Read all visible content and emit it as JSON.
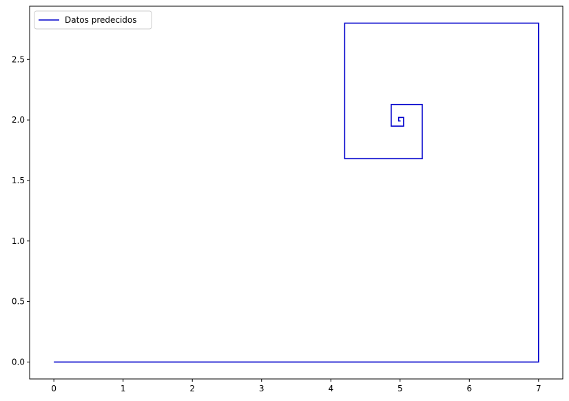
{
  "chart_data": {
    "type": "line",
    "title": "",
    "xlabel": "",
    "ylabel": "",
    "xlim": [
      -0.35,
      7.35
    ],
    "ylim": [
      -0.14,
      2.94
    ],
    "x_ticks": [
      0,
      1,
      2,
      3,
      4,
      5,
      6,
      7
    ],
    "x_tick_labels": [
      "0",
      "1",
      "2",
      "3",
      "4",
      "5",
      "6",
      "7"
    ],
    "y_ticks": [
      0.0,
      0.5,
      1.0,
      1.5,
      2.0,
      2.5
    ],
    "y_tick_labels": [
      "0.0",
      "0.5",
      "1.0",
      "1.5",
      "2.0",
      "2.5"
    ],
    "grid": false,
    "legend_position": "upper-left",
    "series": [
      {
        "name": "Datos predecidos",
        "color": "#0000cc",
        "x": [
          0,
          7,
          7,
          4.2,
          4.2,
          5.32,
          5.32,
          4.872,
          4.872,
          5.051,
          5.051,
          4.979,
          4.979,
          5.008
        ],
        "y": [
          0,
          0,
          2.8,
          2.8,
          1.68,
          1.68,
          2.128,
          2.128,
          1.949,
          1.949,
          2.021,
          2.021,
          1.992,
          1.992
        ]
      }
    ]
  }
}
